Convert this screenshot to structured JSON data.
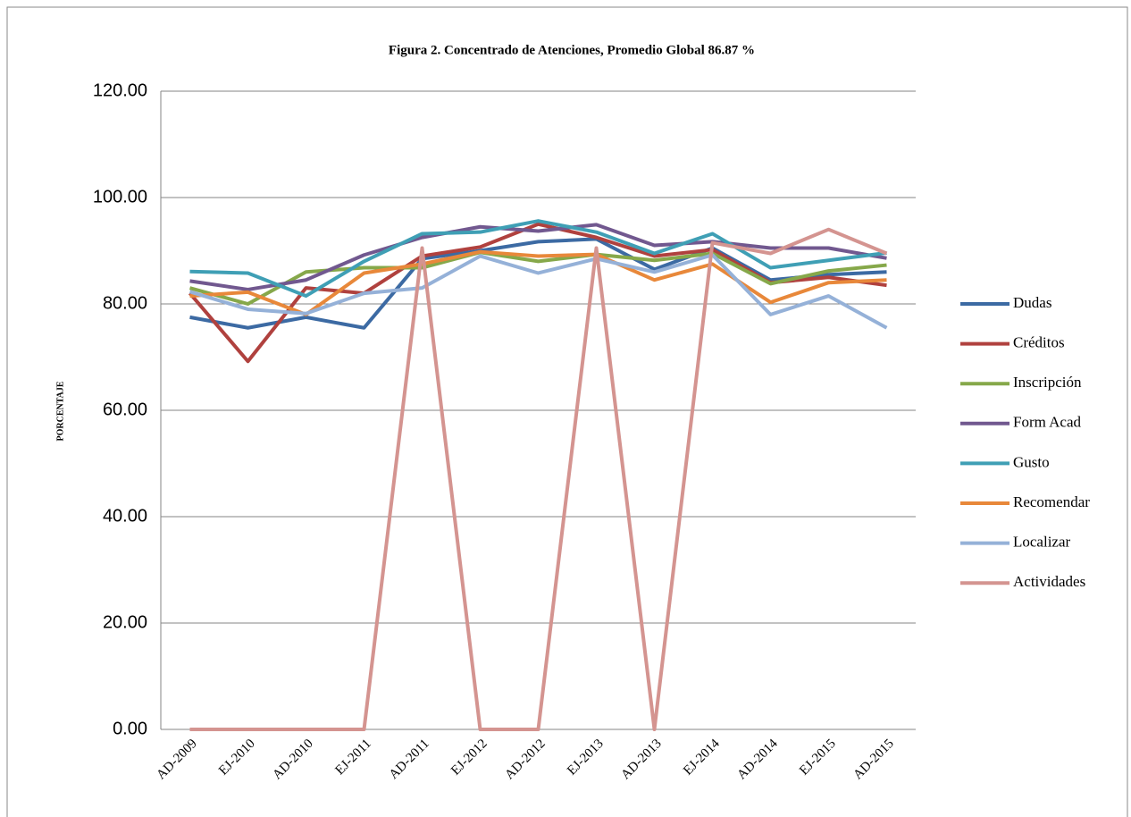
{
  "chart_data": {
    "type": "line",
    "title": "Figura 2. Concentrado de Atenciones, Promedio Global 86.87 %",
    "y_label": "PORCENTAJE",
    "categories": [
      "AD-2009",
      "EJ-2010",
      "AD-2010",
      "EJ-2011",
      "AD-2011",
      "EJ-2012",
      "AD-2012",
      "EJ-2013",
      "AD-2013",
      "EJ-2014",
      "AD-2014",
      "EJ-2015",
      "AD-2015"
    ],
    "series": [
      {
        "name": "Dudas",
        "color": "#3c6aa3",
        "values": [
          77.5,
          75.5,
          77.5,
          75.5,
          88.5,
          90,
          91.7,
          92.2,
          86.5,
          90.5,
          84.5,
          85.5,
          86
        ]
      },
      {
        "name": "Créditos",
        "color": "#b0413e",
        "values": [
          82,
          69.2,
          83,
          82,
          89,
          90.7,
          95,
          92.5,
          89,
          90.2,
          84,
          85,
          83.5
        ]
      },
      {
        "name": "Inscripción",
        "color": "#86a84a",
        "values": [
          83,
          80,
          86,
          86.8,
          86.8,
          89.7,
          88,
          89.3,
          88.2,
          89.5,
          83.8,
          86.2,
          87.3
        ]
      },
      {
        "name": "Form Acad",
        "color": "#71588f",
        "values": [
          84.3,
          82.7,
          84.5,
          89.2,
          92.5,
          94.5,
          93.7,
          94.9,
          91,
          91.7,
          90.5,
          90.5,
          88.6
        ]
      },
      {
        "name": "Gusto",
        "color": "#3f9fb5",
        "values": [
          86.1,
          85.8,
          81.5,
          88,
          93.2,
          93.5,
          95.6,
          93.5,
          89.5,
          93.2,
          86.8,
          88.2,
          89.6
        ]
      },
      {
        "name": "Recomendar",
        "color": "#e8883a",
        "values": [
          81.5,
          82.2,
          78,
          85.8,
          87.5,
          89.8,
          89,
          89.3,
          84.5,
          87.5,
          80.3,
          84,
          84.5
        ]
      },
      {
        "name": "Localizar",
        "color": "#95b1d8",
        "values": [
          82.3,
          79,
          78.2,
          82,
          83,
          89,
          85.8,
          88.5,
          86,
          89.2,
          78,
          81.5,
          75.5
        ]
      },
      {
        "name": "Actividades",
        "color": "#d49490",
        "values": [
          0,
          0,
          0,
          0,
          90.5,
          0,
          0,
          90.5,
          0,
          91.5,
          89.5,
          94,
          89.5
        ]
      }
    ],
    "ylim": [
      0,
      120
    ],
    "yticks": [
      {
        "value": 0,
        "label": "0.00"
      },
      {
        "value": 20,
        "label": "20.00"
      },
      {
        "value": 40,
        "label": "40.00"
      },
      {
        "value": 60,
        "label": "60.00"
      },
      {
        "value": 80,
        "label": "80.00"
      },
      {
        "value": 100,
        "label": "100.00"
      },
      {
        "value": 120,
        "label": "120.00"
      }
    ],
    "grid": true,
    "legend": "right"
  }
}
